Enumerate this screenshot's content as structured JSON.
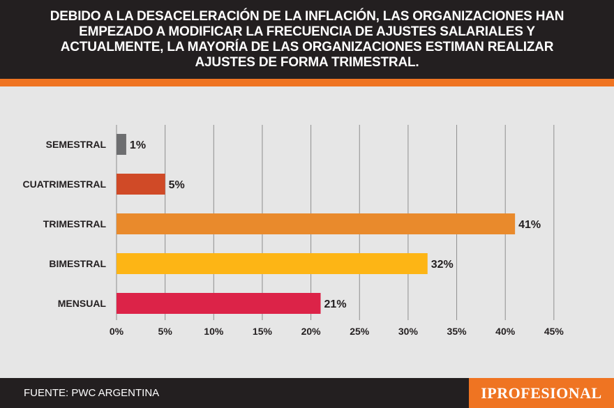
{
  "header": {
    "title": "DEBIDO A LA DESACELERACIÓN DE LA INFLACIÓN, LAS ORGANIZACIONES HAN EMPEZADO A MODIFICAR LA FRECUENCIA DE AJUSTES SALARIALES Y ACTUALMENTE, LA MAYORÍA DE LAS ORGANIZACIONES ESTIMAN REALIZAR AJUSTES DE FORMA TRIMESTRAL."
  },
  "footer": {
    "source": "FUENTE: PWC ARGENTINA",
    "brand": "IPROFESIONAL"
  },
  "colors": {
    "header_bg": "#231f20",
    "accent": "#ef7422",
    "chart_bg": "#e6e6e6"
  },
  "chart_data": {
    "type": "bar",
    "orientation": "horizontal",
    "title": "DEBIDO A LA DESACELERACIÓN DE LA INFLACIÓN, LAS ORGANIZACIONES HAN EMPEZADO A MODIFICAR LA FRECUENCIA DE AJUSTES SALARIALES Y ACTUALMENTE, LA MAYORÍA DE LAS ORGANIZACIONES ESTIMAN REALIZAR AJUSTES DE FORMA TRIMESTRAL.",
    "categories": [
      "SEMESTRAL",
      "CUATRIMESTRAL",
      "TRIMESTRAL",
      "BIMESTRAL",
      "MENSUAL"
    ],
    "values": [
      1,
      5,
      41,
      32,
      21
    ],
    "value_labels": [
      "1%",
      "5%",
      "41%",
      "32%",
      "21%"
    ],
    "bar_colors": [
      "#6d6e70",
      "#d04a27",
      "#e98a2c",
      "#fdb515",
      "#dc2348"
    ],
    "xlim": [
      0,
      45
    ],
    "xticks": [
      0,
      5,
      10,
      15,
      20,
      25,
      30,
      35,
      40,
      45
    ],
    "xtick_labels": [
      "0%",
      "5%",
      "10%",
      "15%",
      "20%",
      "25%",
      "30%",
      "35%",
      "40%",
      "45%"
    ],
    "xlabel": "",
    "ylabel": "",
    "grid": true
  }
}
